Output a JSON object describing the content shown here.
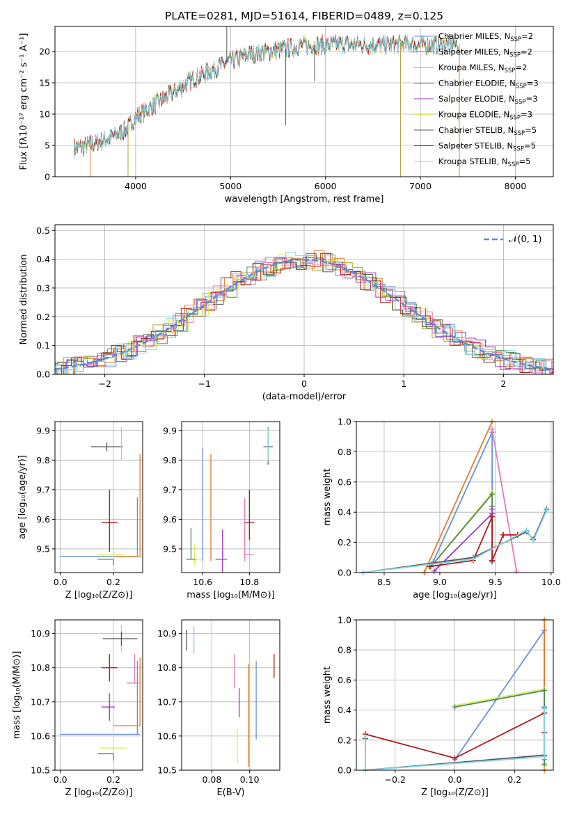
{
  "figure": {
    "title": "PLATE=0281, MJD=51614, FIBERID=0489, z=0.125"
  },
  "colors": {
    "chabrier_miles": "#6b8fd6",
    "salpeter_miles": "#e07b2c",
    "kroupa_miles": "#b0a03a",
    "chabrier_elodie": "#4f8a4f",
    "salpeter_elodie": "#9b35c4",
    "kroupa_elodie": "#d8ea5a",
    "chabrier_stelib": "#555555",
    "salpeter_stelib": "#aa1a1a",
    "kroupa_stelib": "#86d6e0",
    "pink": "#e07ab8",
    "normal_curve": "#5b8bd9"
  },
  "chart_data": [
    {
      "id": "spectrum",
      "type": "line",
      "xlabel": "wavelength [Angstrom, rest frame]",
      "ylabel": "Flux [fλ10⁻¹⁷ erg cm⁻² s⁻¹ A⁻¹]",
      "xlim": [
        3150,
        8400
      ],
      "ylim": [
        0,
        24
      ],
      "xticks": [
        4000,
        5000,
        6000,
        7000,
        8000
      ],
      "yticks": [
        0,
        5,
        10,
        15,
        20
      ],
      "grid": true,
      "legend_position": "top-right",
      "legend": [
        {
          "label": "Chabrier MILES, N",
          "sub": "SSP",
          "suffix": "=2",
          "color_key": "chabrier_miles"
        },
        {
          "label": "Salpeter MILES, N",
          "sub": "SSP",
          "suffix": "=2",
          "color_key": "salpeter_miles"
        },
        {
          "label": "Kroupa MILES, N",
          "sub": "SSP",
          "suffix": "=2",
          "color_key": "kroupa_miles"
        },
        {
          "label": "Chabrier ELODIE, N",
          "sub": "SSP",
          "suffix": "=3",
          "color_key": "chabrier_elodie"
        },
        {
          "label": "Salpeter ELODIE, N",
          "sub": "SSP",
          "suffix": "=3",
          "color_key": "salpeter_elodie"
        },
        {
          "label": "Kroupa ELODIE, N",
          "sub": "SSP",
          "suffix": "=3",
          "color_key": "kroupa_elodie"
        },
        {
          "label": "Chabrier STELIB, N",
          "sub": "SSP",
          "suffix": "=5",
          "color_key": "chabrier_stelib"
        },
        {
          "label": "Salpeter STELIB, N",
          "sub": "SSP",
          "suffix": "=5",
          "color_key": "salpeter_stelib"
        },
        {
          "label": "Kroupa STELIB, N",
          "sub": "SSP",
          "suffix": "=5",
          "color_key": "kroupa_stelib"
        }
      ],
      "continuum": {
        "x": [
          3350,
          3500,
          3700,
          3900,
          4000,
          4200,
          4400,
          4600,
          4800,
          5000,
          5200,
          5400,
          5600,
          5800,
          6000,
          6200,
          6400,
          6600,
          6800,
          7000,
          7200,
          7400
        ],
        "y": [
          4.5,
          5.0,
          6.0,
          7.5,
          9.5,
          11.5,
          13.5,
          15.5,
          17.0,
          18.5,
          19.5,
          20.0,
          20.5,
          21.0,
          21.0,
          21.2,
          21.0,
          21.0,
          21.2,
          21.0,
          21.0,
          21.2
        ]
      },
      "spikes": [
        {
          "x": 4960,
          "y": 24,
          "color_key": "chabrier_stelib"
        },
        {
          "x": 5580,
          "y": 8.2,
          "color_key": "chabrier_stelib"
        },
        {
          "x": 5885,
          "y": 15.2,
          "color_key": "chabrier_stelib"
        },
        {
          "x": 3520,
          "y": 0,
          "color_key": "salpeter_miles"
        },
        {
          "x": 3920,
          "y": 0,
          "color_key": "kroupa_miles"
        },
        {
          "x": 6790,
          "y": 0,
          "color_key": "kroupa_miles"
        },
        {
          "x": 7410,
          "y": 0,
          "color_key": "salpeter_miles"
        }
      ]
    },
    {
      "id": "residuals",
      "type": "line",
      "xlabel": "(data-model)/error",
      "ylabel": "Normed distribution",
      "xlim": [
        -2.5,
        2.5
      ],
      "ylim": [
        0,
        0.52
      ],
      "xticks": [
        -2,
        -1,
        0,
        1,
        2
      ],
      "yticks": [
        0.0,
        0.1,
        0.2,
        0.3,
        0.4,
        0.5
      ],
      "grid": true,
      "legend_position": "top-right",
      "legend": [
        {
          "label": "𝒩(0, 1)",
          "color_key": "normal_curve"
        }
      ],
      "normal_curve": {
        "mean": 0,
        "sigma": 1
      }
    },
    {
      "id": "age_vs_Z",
      "type": "scatter",
      "xlabel": "Z [log₁₀(Z/Z⊙)]",
      "ylabel": "age  [log₁₀(age/yr)]",
      "xlim": [
        -0.02,
        0.31
      ],
      "ylim": [
        9.42,
        9.93
      ],
      "xticks": [
        0.0,
        0.2
      ],
      "yticks": [
        9.5,
        9.6,
        9.7,
        9.8,
        9.9
      ],
      "grid": true,
      "points": [
        {
          "x": 0.175,
          "y": 9.845,
          "xerr": [
            0.06,
            0.06
          ],
          "yerr": [
            0.015,
            0.015
          ],
          "color_key": "chabrier_stelib"
        },
        {
          "x": 0.23,
          "y": 9.845,
          "xerr": [
            0.0,
            0.0
          ],
          "yerr": [
            0.045,
            0.065
          ],
          "color_key": "kroupa_stelib"
        },
        {
          "x": 0.185,
          "y": 9.59,
          "xerr": [
            0.03,
            0.03
          ],
          "yerr": [
            0.1,
            0.11
          ],
          "color_key": "salpeter_stelib"
        },
        {
          "x": 0.29,
          "y": 9.475,
          "xerr": [
            0.29,
            0.01
          ],
          "yerr": [
            0.0,
            0.2
          ],
          "color_key": "chabrier_miles"
        },
        {
          "x": 0.3,
          "y": 9.475,
          "xerr": [
            0.1,
            0.0
          ],
          "yerr": [
            0.0,
            0.345
          ],
          "color_key": "salpeter_miles"
        },
        {
          "x": 0.2,
          "y": 9.48,
          "xerr": [
            0.06,
            0.04
          ],
          "yerr": [
            0.06,
            0.07
          ],
          "color_key": "kroupa_elodie"
        },
        {
          "x": 0.2,
          "y": 9.465,
          "xerr": [
            0.06,
            0.0
          ],
          "yerr": [
            0.02,
            0.0
          ],
          "color_key": "chabrier_elodie"
        }
      ]
    },
    {
      "id": "age_vs_mass",
      "type": "scatter",
      "xlabel": "mass [log₁₀(M/M⊙)]",
      "ylabel": "",
      "xlim": [
        10.51,
        10.93
      ],
      "ylim": [
        9.42,
        9.93
      ],
      "xticks": [
        10.6,
        10.8
      ],
      "yticks": [
        9.5,
        9.6,
        9.7,
        9.8,
        9.9
      ],
      "grid": true,
      "points": [
        {
          "x": 10.88,
          "y": 9.845,
          "xerr": [
            0.02,
            0.02
          ],
          "yerr": [
            0.06,
            0.065
          ],
          "color_key": "chabrier_stelib"
        },
        {
          "x": 10.88,
          "y": 9.845,
          "xerr": [
            0.0,
            0.0
          ],
          "yerr": [
            0.05,
            0.06
          ],
          "color_key": "kroupa_stelib"
        },
        {
          "x": 10.6,
          "y": 9.48,
          "xerr": [
            0.0,
            0.0
          ],
          "yerr": [
            0.02,
            0.36
          ],
          "color_key": "chabrier_miles"
        },
        {
          "x": 10.635,
          "y": 9.48,
          "xerr": [
            0.0,
            0.0
          ],
          "yerr": [
            0.02,
            0.34
          ],
          "color_key": "salpeter_miles"
        },
        {
          "x": 10.8,
          "y": 9.59,
          "xerr": [
            0.02,
            0.02
          ],
          "yerr": [
            0.06,
            0.11
          ],
          "color_key": "salpeter_stelib"
        },
        {
          "x": 10.685,
          "y": 9.465,
          "xerr": [
            0.03,
            0.02
          ],
          "yerr": [
            0.05,
            0.1
          ],
          "color_key": "salpeter_elodie"
        },
        {
          "x": 10.78,
          "y": 9.48,
          "xerr": [
            0.0,
            0.04
          ],
          "yerr": [
            0.02,
            0.19
          ],
          "color_key": "pink"
        },
        {
          "x": 10.565,
          "y": 9.465,
          "xerr": [
            0.03,
            0.03
          ],
          "yerr": [
            0.02,
            0.05
          ],
          "color_key": "kroupa_elodie"
        },
        {
          "x": 10.55,
          "y": 9.465,
          "xerr": [
            0.02,
            0.02
          ],
          "yerr": [
            0.0,
            0.105
          ],
          "color_key": "chabrier_elodie"
        }
      ]
    },
    {
      "id": "weight_vs_age",
      "type": "line",
      "xlabel": "age  [log₁₀(age/yr)]",
      "ylabel": "mass weight",
      "xlim": [
        8.25,
        10.02
      ],
      "ylim": [
        0,
        1
      ],
      "xticks": [
        8.5,
        9.0,
        9.5,
        10.0
      ],
      "yticks": [
        0.0,
        0.2,
        0.4,
        0.6,
        0.8,
        1.0
      ],
      "grid": true,
      "series": [
        {
          "color_key": "chabrier_miles",
          "x": [
            8.94,
            9.47,
            9.47
          ],
          "y": [
            0.07,
            0.93,
            0.07
          ]
        },
        {
          "color_key": "salpeter_miles",
          "x": [
            8.86,
            9.47
          ],
          "y": [
            0.0,
            1.0
          ]
        },
        {
          "color_key": "pink",
          "x": [
            9.47,
            9.69
          ],
          "y": [
            0.95,
            0.01
          ]
        },
        {
          "color_key": "kroupa_elodie",
          "x": [
            8.91,
            9.47,
            9.47
          ],
          "y": [
            0.03,
            0.53,
            0.44
          ]
        },
        {
          "color_key": "chabrier_elodie",
          "x": [
            8.92,
            9.47,
            9.47
          ],
          "y": [
            0.04,
            0.52,
            0.44
          ]
        },
        {
          "color_key": "salpeter_elodie",
          "x": [
            8.95,
            9.47,
            9.47
          ],
          "y": [
            0.01,
            0.39,
            0.42
          ]
        },
        {
          "color_key": "salpeter_stelib",
          "x": [
            8.91,
            9.3,
            9.47,
            9.47,
            9.57,
            9.57,
            9.7,
            9.7
          ],
          "y": [
            0.04,
            0.08,
            0.37,
            0.08,
            0.25,
            0.25,
            0.25,
            0.25
          ]
        },
        {
          "color_key": "chabrier_stelib",
          "x": [
            8.31,
            9.3,
            9.78,
            9.84,
            9.96
          ],
          "y": [
            0.0,
            0.1,
            0.27,
            0.22,
            0.42
          ]
        },
        {
          "color_key": "kroupa_stelib",
          "x": [
            8.31,
            9.3,
            9.78,
            9.84,
            9.96
          ],
          "y": [
            0.0,
            0.09,
            0.28,
            0.21,
            0.41
          ]
        }
      ]
    },
    {
      "id": "mass_vs_Z",
      "type": "scatter",
      "xlabel": "Z [log₁₀(Z/Z⊙)]",
      "ylabel": "mass [log₁₀(M/M⊙)]",
      "xlim": [
        -0.02,
        0.31
      ],
      "ylim": [
        10.5,
        10.94
      ],
      "xticks": [
        0.0,
        0.2
      ],
      "yticks": [
        10.5,
        10.6,
        10.7,
        10.8,
        10.9
      ],
      "grid": true,
      "points": [
        {
          "x": 0.23,
          "y": 10.885,
          "xerr": [
            0.0,
            0.0
          ],
          "yerr": [
            0.04,
            0.04
          ],
          "color_key": "kroupa_stelib"
        },
        {
          "x": 0.23,
          "y": 10.885,
          "xerr": [
            0.07,
            0.06
          ],
          "yerr": [
            0.02,
            0.02
          ],
          "color_key": "chabrier_stelib"
        },
        {
          "x": 0.185,
          "y": 10.8,
          "xerr": [
            0.03,
            0.03
          ],
          "yerr": [
            0.04,
            0.04
          ],
          "color_key": "salpeter_stelib"
        },
        {
          "x": 0.29,
          "y": 10.605,
          "xerr": [
            0.29,
            0.01
          ],
          "yerr": [
            0.0,
            0.215
          ],
          "color_key": "chabrier_miles"
        },
        {
          "x": 0.3,
          "y": 10.63,
          "xerr": [
            0.1,
            0.0
          ],
          "yerr": [
            0.0,
            0.2
          ],
          "color_key": "salpeter_miles"
        },
        {
          "x": 0.28,
          "y": 10.755,
          "xerr": [
            0.03,
            0.02
          ],
          "yerr": [
            0.0,
            0.085
          ],
          "color_key": "pink"
        },
        {
          "x": 0.185,
          "y": 10.685,
          "xerr": [
            0.03,
            0.02
          ],
          "yerr": [
            0.04,
            0.04
          ],
          "color_key": "salpeter_elodie"
        },
        {
          "x": 0.2,
          "y": 10.565,
          "xerr": [
            0.05,
            0.05
          ],
          "yerr": [
            0.045,
            0.055
          ],
          "color_key": "kroupa_elodie"
        },
        {
          "x": 0.2,
          "y": 10.548,
          "xerr": [
            0.06,
            0.0
          ],
          "yerr": [
            0.02,
            0.0
          ],
          "color_key": "chabrier_elodie"
        }
      ]
    },
    {
      "id": "mass_vs_ebv",
      "type": "scatter",
      "xlabel": "E(B-V)",
      "ylabel": "",
      "xlim": [
        0.064,
        0.116
      ],
      "ylim": [
        10.5,
        10.94
      ],
      "xticks": [
        0.08,
        0.1
      ],
      "yticks": [
        10.5,
        10.6,
        10.7,
        10.8,
        10.9
      ],
      "grid": true,
      "points": [
        {
          "x": 0.0665,
          "y": 10.88,
          "xerr": [
            0,
            0
          ],
          "yerr": [
            0.03,
            0.03
          ],
          "color_key": "chabrier_stelib"
        },
        {
          "x": 0.0705,
          "y": 10.88,
          "xerr": [
            0,
            0
          ],
          "yerr": [
            0.04,
            0.04
          ],
          "color_key": "kroupa_stelib"
        },
        {
          "x": 0.092,
          "y": 10.79,
          "xerr": [
            0,
            0
          ],
          "yerr": [
            0.05,
            0.05
          ],
          "color_key": "pink"
        },
        {
          "x": 0.0945,
          "y": 10.69,
          "xerr": [
            0,
            0
          ],
          "yerr": [
            0.035,
            0.05
          ],
          "color_key": "salpeter_elodie"
        },
        {
          "x": 0.0935,
          "y": 10.57,
          "xerr": [
            0,
            0
          ],
          "yerr": [
            0.05,
            0.05
          ],
          "color_key": "kroupa_elodie"
        },
        {
          "x": 0.0995,
          "y": 10.69,
          "xerr": [
            0,
            0
          ],
          "yerr": [
            0.18,
            0.12
          ],
          "color_key": "salpeter_miles"
        },
        {
          "x": 0.1035,
          "y": 10.72,
          "xerr": [
            0,
            0
          ],
          "yerr": [
            0.13,
            0.1
          ],
          "color_key": "chabrier_miles"
        },
        {
          "x": 0.113,
          "y": 10.8,
          "xerr": [
            0,
            0
          ],
          "yerr": [
            0.03,
            0.04
          ],
          "color_key": "salpeter_stelib"
        }
      ]
    },
    {
      "id": "weight_vs_Z",
      "type": "line",
      "xlabel": "Z [log₁₀(Z/Z⊙)]",
      "ylabel": "mass weight",
      "xlim": [
        -0.33,
        0.33
      ],
      "ylim": [
        0,
        1
      ],
      "xticks": [
        -0.2,
        0.0,
        0.2
      ],
      "yticks": [
        0.0,
        0.2,
        0.4,
        0.6,
        0.8,
        1.0
      ],
      "grid": true,
      "series": [
        {
          "color_key": "chabrier_miles",
          "x": [
            0.0,
            0.3,
            0.3
          ],
          "y": [
            0.07,
            0.93,
            0.07
          ]
        },
        {
          "color_key": "salpeter_miles",
          "x": [
            0.3,
            0.3
          ],
          "y": [
            1.0,
            0.0
          ]
        },
        {
          "color_key": "kroupa_elodie",
          "x": [
            0.0,
            0.3,
            0.3
          ],
          "y": [
            0.43,
            0.54,
            0.03
          ]
        },
        {
          "color_key": "chabrier_elodie",
          "x": [
            0.0,
            0.3,
            0.3
          ],
          "y": [
            0.42,
            0.53,
            0.04
          ]
        },
        {
          "color_key": "salpeter_stelib",
          "x": [
            -0.3,
            0.0,
            0.3,
            0.3
          ],
          "y": [
            0.24,
            0.08,
            0.38,
            0.25
          ]
        },
        {
          "color_key": "chabrier_stelib",
          "x": [
            -0.3,
            -0.3,
            0.3,
            0.3
          ],
          "y": [
            0.21,
            0.0,
            0.1,
            0.42
          ]
        },
        {
          "color_key": "kroupa_stelib",
          "x": [
            -0.3,
            -0.3,
            0.3,
            0.3
          ],
          "y": [
            0.22,
            0.0,
            0.09,
            0.41
          ]
        }
      ]
    }
  ]
}
